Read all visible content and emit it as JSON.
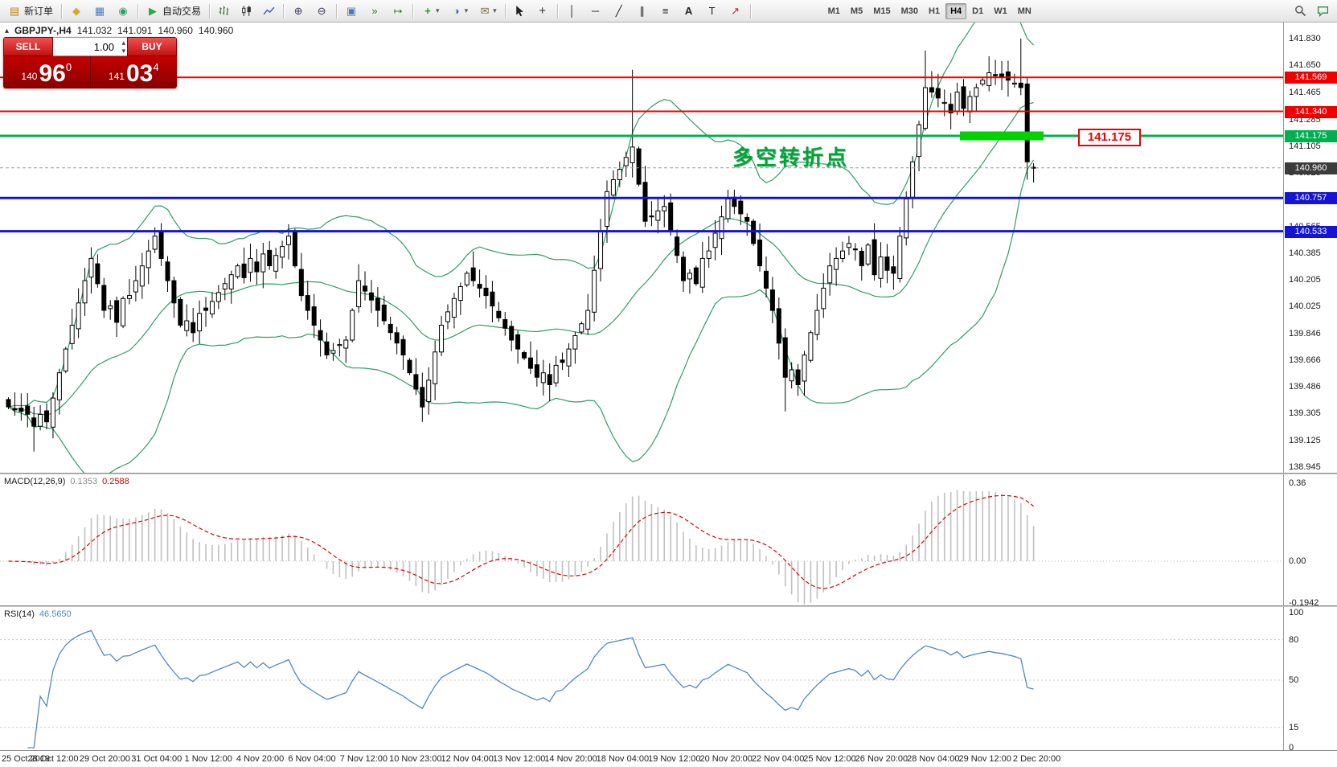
{
  "toolbar": {
    "new_order": "新订单",
    "autotrading": "自动交易",
    "timeframes": [
      "M1",
      "M5",
      "M15",
      "M30",
      "H1",
      "H4",
      "D1",
      "W1",
      "MN"
    ],
    "active_timeframe": "H4"
  },
  "icons": {
    "new-order": "▤",
    "accounts": "◆",
    "charts": "▦",
    "community": "◉",
    "autotrade-play": "▶",
    "zoom-in": "⊕",
    "zoom-out": "⊖",
    "tile-windows": "▣",
    "auto-scroll": "»",
    "chart-shift": "↦",
    "indicators-plus": "+",
    "periods": "◑",
    "templates": "✉",
    "crosshair": "+",
    "vertical-line": "│",
    "horizontal-line": "─",
    "trendline": "╱",
    "channel": "∥",
    "fibonacci": "≡",
    "text-tool": "A",
    "text-label": "T",
    "arrows-tool": "↗",
    "dropdown": "▾",
    "collapse-panel": "▴",
    "spin-up": "▴",
    "spin-down": "▾"
  },
  "symbol_line": {
    "symbol": "GBPJPY-,H4",
    "open": "141.032",
    "high": "141.091",
    "low": "140.960",
    "close": "140.960"
  },
  "trade_panel": {
    "sell_label": "SELL",
    "buy_label": "BUY",
    "volume": "1.00",
    "sell_price": {
      "prefix": "140",
      "big": "96",
      "sup": "0"
    },
    "buy_price": {
      "prefix": "141",
      "big": "03",
      "sup": "4"
    }
  },
  "chart_data": {
    "type": "candlestick",
    "symbol": "GBPJPY-",
    "timeframe": "H4",
    "first_open": 139.4,
    "closes": [
      139.35,
      139.33,
      139.32,
      139.3,
      139.22,
      139.3,
      139.25,
      139.41,
      139.58,
      139.74,
      139.9,
      140.05,
      140.2,
      140.35,
      140.18,
      140.0,
      140.03,
      139.92,
      140.08,
      140.1,
      140.2,
      140.3,
      140.4,
      140.5,
      140.35,
      140.2,
      140.05,
      139.9,
      139.93,
      139.85,
      139.98,
      140.0,
      140.06,
      140.12,
      140.18,
      140.24,
      140.3,
      140.22,
      140.35,
      140.26,
      140.38,
      140.3,
      140.37,
      140.43,
      140.5,
      140.3,
      140.1,
      140.0,
      139.9,
      139.8,
      139.7,
      139.73,
      139.77,
      139.8,
      140.0,
      140.2,
      140.13,
      140.07,
      140.0,
      139.93,
      139.85,
      139.78,
      139.7,
      139.58,
      139.47,
      139.35,
      139.53,
      139.72,
      139.9,
      139.99,
      140.08,
      140.16,
      140.25,
      140.2,
      140.15,
      140.1,
      140.03,
      139.95,
      139.88,
      139.8,
      139.74,
      139.68,
      139.61,
      139.55,
      139.58,
      139.5,
      139.63,
      139.65,
      139.74,
      139.83,
      139.91,
      140.0,
      140.27,
      140.53,
      140.8,
      140.88,
      140.95,
      141.03,
      141.1,
      140.85,
      140.6,
      140.63,
      140.67,
      140.7,
      140.53,
      140.37,
      140.2,
      140.25,
      140.18,
      140.35,
      140.4,
      140.52,
      140.63,
      140.75,
      140.7,
      140.65,
      140.6,
      140.45,
      140.3,
      140.15,
      140.0,
      139.78,
      139.55,
      139.6,
      139.5,
      139.7,
      139.85,
      140.0,
      140.15,
      140.3,
      140.35,
      140.4,
      140.45,
      140.41,
      140.3,
      140.44,
      140.24,
      140.36,
      140.27,
      140.25,
      140.5,
      140.75,
      141.0,
      141.25,
      141.5,
      141.47,
      141.43,
      141.4,
      141.33,
      141.47,
      141.36,
      141.44,
      141.5,
      141.55,
      141.6,
      141.58,
      141.57,
      141.55,
      141.53,
      141.5,
      141.0,
      140.96
    ],
    "extremes": {
      "4": {
        "low": 139.05
      },
      "23": {
        "high": 140.56
      },
      "44": {
        "high": 140.58
      },
      "65": {
        "low": 139.25
      },
      "98": {
        "high": 141.62
      },
      "122": {
        "low": 139.32
      },
      "144": {
        "high": 141.75
      },
      "159": {
        "high": 141.83
      },
      "160": {
        "low": 140.88
      }
    },
    "bollinger": {
      "period": 20,
      "deviation": 2,
      "color": "#2f9e63"
    },
    "hlines": [
      {
        "price": "141.569",
        "color": "#f00000",
        "width": 2,
        "badge": true
      },
      {
        "price": "141.340",
        "color": "#f00000",
        "width": 2,
        "badge": true
      },
      {
        "price": "141.175",
        "color": "#00b050",
        "width": 3,
        "badge": true
      },
      {
        "price": "140.757",
        "color": "#1414d2",
        "width": 3,
        "badge": true
      },
      {
        "price": "140.533",
        "color": "#1414d2",
        "width": 3,
        "badge": true
      }
    ],
    "bid": {
      "price": "140.960",
      "badge_color": "#3c3c3c"
    },
    "price_axis_labels": [
      "141.830",
      "141.650",
      "141.465",
      "141.285",
      "141.105",
      "140.925",
      "140.745",
      "140.565",
      "140.385",
      "140.205",
      "140.025",
      "139.846",
      "139.666",
      "139.486",
      "139.305",
      "139.125",
      "138.945"
    ],
    "macd": {
      "label": "MACD(12,26,9)",
      "value_main": "0.1353",
      "value_signal": "0.2588",
      "axis_labels": [
        "0.36",
        "0.00",
        "-0.1942"
      ],
      "bar_color": "#c0c0c0",
      "signal_color": "#e00000"
    },
    "rsi": {
      "label": "RSI(14)",
      "value": "46.5650",
      "axis_labels": [
        "100",
        "80",
        "50",
        "15",
        "0"
      ],
      "levels": [
        80,
        50,
        15
      ],
      "color": "#4f86d0"
    },
    "annotations": {
      "note_text": {
        "text": "多空转折点",
        "color": "#00a33c"
      },
      "price_tag": {
        "text": "141.175",
        "color": "#f00000"
      },
      "highlight": {
        "color": "#00d200"
      }
    },
    "time_axis": [
      "25 Oct 2019",
      "28 Oct 12:00",
      "29 Oct 20:00",
      "31 Oct 04:00",
      "1 Nov 12:00",
      "4 Nov 20:00",
      "6 Nov 04:00",
      "7 Nov 12:00",
      "10 Nov 23:00",
      "12 Nov 04:00",
      "13 Nov 12:00",
      "14 Nov 20:00",
      "18 Nov 04:00",
      "19 Nov 12:00",
      "20 Nov 20:00",
      "22 Nov 04:00",
      "25 Nov 12:00",
      "26 Nov 20:00",
      "28 Nov 04:00",
      "29 Nov 12:00",
      "2 Dec 20:00"
    ]
  }
}
